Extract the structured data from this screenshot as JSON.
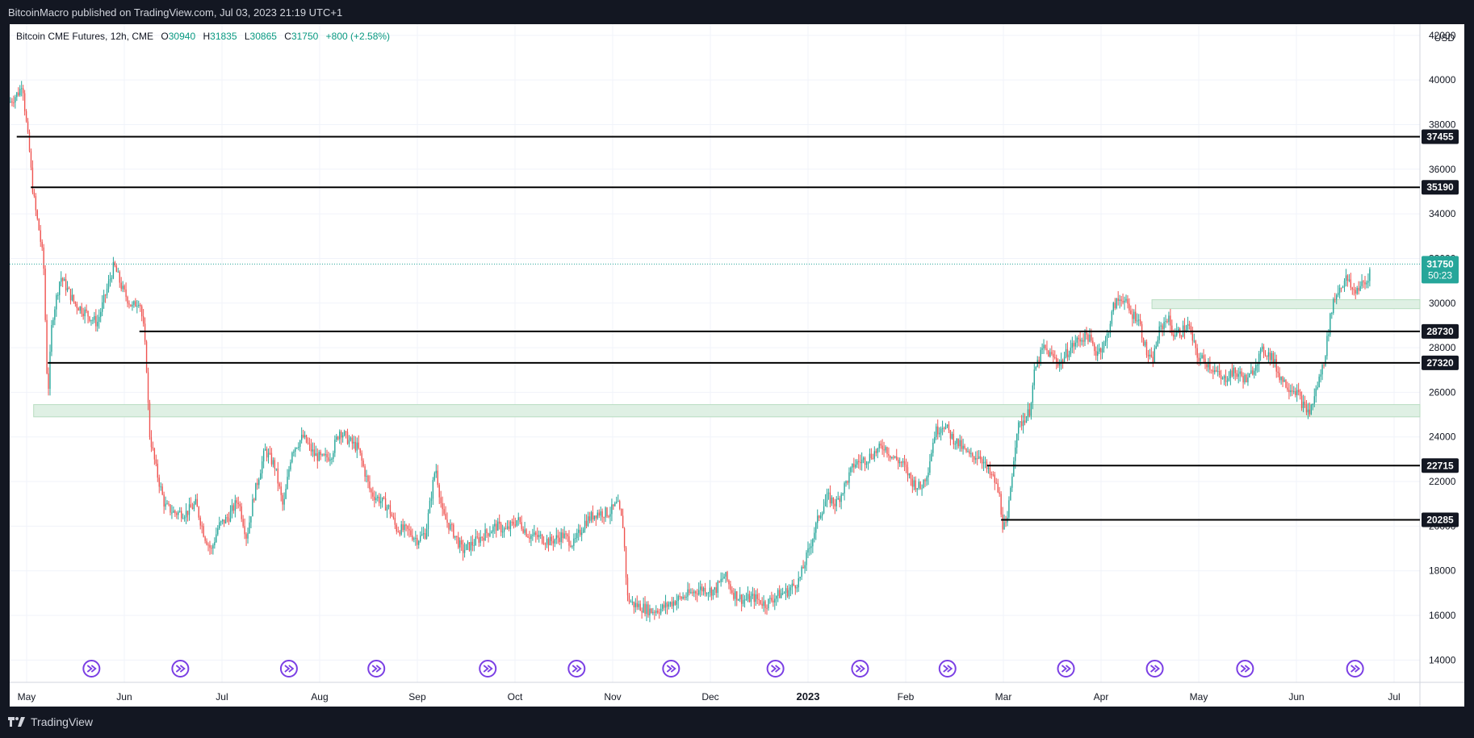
{
  "header": {
    "published_text": "BitcoinMacro published on TradingView.com, Jul 03, 2023 21:19 UTC+1"
  },
  "legend": {
    "symbol": "Bitcoin CME Futures, 12h, CME",
    "open_label": "O",
    "open": "30940",
    "high_label": "H",
    "high": "31835",
    "low_label": "L",
    "low": "30865",
    "close_label": "C",
    "close": "31750",
    "change": "+800 (+2.58%)"
  },
  "currency": "USD",
  "footer": {
    "brand": "TradingView"
  },
  "colors": {
    "up": "#26a69a",
    "down": "#ef5350",
    "level_line": "#000000",
    "zone_fill": "#dff0e4",
    "price_tag": "#26a69a",
    "event_icon": "#7b3fe4"
  },
  "chart_data": {
    "type": "candlestick",
    "title": "Bitcoin CME Futures, 12h, CME",
    "ylim": [
      13000,
      42500
    ],
    "y_ticks": [
      14000,
      16000,
      18000,
      20000,
      22000,
      24000,
      26000,
      28000,
      30000,
      32000,
      34000,
      36000,
      38000,
      40000,
      42000
    ],
    "x_ticks": [
      "May",
      "Jun",
      "Jul",
      "Aug",
      "Sep",
      "Oct",
      "Nov",
      "Dec",
      "2023",
      "Feb",
      "Mar",
      "Apr",
      "May",
      "Jun",
      "Jul"
    ],
    "last_price": "31750",
    "countdown": "50:23",
    "levels": [
      {
        "value": 37455,
        "label": "37455",
        "from": 0.005
      },
      {
        "value": 35190,
        "label": "35190",
        "from": 0.015
      },
      {
        "value": 28730,
        "label": "28730",
        "from": 0.092
      },
      {
        "value": 27320,
        "label": "27320",
        "from": 0.027
      },
      {
        "value": 22715,
        "label": "22715",
        "from": 0.693
      },
      {
        "value": 20285,
        "label": "20285",
        "from": 0.703
      }
    ],
    "zones": [
      {
        "low": 24900,
        "high": 25450,
        "from": 0.017,
        "to": 1.0
      },
      {
        "low": 29750,
        "high": 30150,
        "from": 0.81,
        "to": 1.0
      }
    ],
    "path": [
      [
        0.0,
        39000
      ],
      [
        0.007,
        39500
      ],
      [
        0.009,
        40000
      ],
      [
        0.011,
        38500
      ],
      [
        0.014,
        36800
      ],
      [
        0.016,
        35300
      ],
      [
        0.018,
        34300
      ],
      [
        0.021,
        33200
      ],
      [
        0.024,
        31800
      ],
      [
        0.027,
        25700
      ],
      [
        0.03,
        29200
      ],
      [
        0.036,
        31200
      ],
      [
        0.046,
        30000
      ],
      [
        0.055,
        29500
      ],
      [
        0.062,
        29100
      ],
      [
        0.068,
        30400
      ],
      [
        0.074,
        31700
      ],
      [
        0.08,
        30600
      ],
      [
        0.087,
        29800
      ],
      [
        0.092,
        30200
      ],
      [
        0.095,
        28800
      ],
      [
        0.097,
        27200
      ],
      [
        0.099,
        24200
      ],
      [
        0.104,
        22500
      ],
      [
        0.11,
        20900
      ],
      [
        0.117,
        20600
      ],
      [
        0.125,
        20600
      ],
      [
        0.132,
        21000
      ],
      [
        0.138,
        19600
      ],
      [
        0.143,
        18900
      ],
      [
        0.148,
        20000
      ],
      [
        0.155,
        20400
      ],
      [
        0.162,
        21200
      ],
      [
        0.168,
        19500
      ],
      [
        0.173,
        21300
      ],
      [
        0.181,
        23400
      ],
      [
        0.188,
        22700
      ],
      [
        0.194,
        20800
      ],
      [
        0.2,
        23400
      ],
      [
        0.208,
        24000
      ],
      [
        0.216,
        23200
      ],
      [
        0.222,
        23000
      ],
      [
        0.228,
        23200
      ],
      [
        0.234,
        24300
      ],
      [
        0.241,
        23800
      ],
      [
        0.247,
        23500
      ],
      [
        0.251,
        22600
      ],
      [
        0.256,
        21500
      ],
      [
        0.262,
        21200
      ],
      [
        0.269,
        20800
      ],
      [
        0.274,
        19900
      ],
      [
        0.282,
        19800
      ],
      [
        0.289,
        19400
      ],
      [
        0.295,
        19700
      ],
      [
        0.302,
        22700
      ],
      [
        0.307,
        20500
      ],
      [
        0.314,
        19800
      ],
      [
        0.321,
        18900
      ],
      [
        0.328,
        19200
      ],
      [
        0.336,
        19600
      ],
      [
        0.345,
        20000
      ],
      [
        0.352,
        19800
      ],
      [
        0.36,
        20300
      ],
      [
        0.368,
        19600
      ],
      [
        0.376,
        19500
      ],
      [
        0.383,
        19300
      ],
      [
        0.392,
        19600
      ],
      [
        0.4,
        19200
      ],
      [
        0.408,
        20200
      ],
      [
        0.416,
        20600
      ],
      [
        0.425,
        20600
      ],
      [
        0.431,
        21000
      ],
      [
        0.435,
        20000
      ],
      [
        0.438,
        16800
      ],
      [
        0.442,
        16500
      ],
      [
        0.447,
        16400
      ],
      [
        0.455,
        16200
      ],
      [
        0.462,
        16300
      ],
      [
        0.47,
        16600
      ],
      [
        0.48,
        16900
      ],
      [
        0.49,
        17200
      ],
      [
        0.5,
        17100
      ],
      [
        0.507,
        17800
      ],
      [
        0.513,
        17000
      ],
      [
        0.52,
        16700
      ],
      [
        0.528,
        16800
      ],
      [
        0.536,
        16500
      ],
      [
        0.544,
        16900
      ],
      [
        0.552,
        17100
      ],
      [
        0.56,
        17600
      ],
      [
        0.567,
        19000
      ],
      [
        0.574,
        20500
      ],
      [
        0.58,
        21300
      ],
      [
        0.586,
        21000
      ],
      [
        0.592,
        21800
      ],
      [
        0.599,
        22800
      ],
      [
        0.607,
        23000
      ],
      [
        0.613,
        23300
      ],
      [
        0.62,
        23600
      ],
      [
        0.626,
        23100
      ],
      [
        0.633,
        22800
      ],
      [
        0.64,
        22000
      ],
      [
        0.646,
        21700
      ],
      [
        0.651,
        22500
      ],
      [
        0.656,
        24200
      ],
      [
        0.662,
        24600
      ],
      [
        0.668,
        24000
      ],
      [
        0.674,
        23600
      ],
      [
        0.681,
        23100
      ],
      [
        0.688,
        23200
      ],
      [
        0.694,
        22400
      ],
      [
        0.698,
        22100
      ],
      [
        0.702,
        21300
      ],
      [
        0.704,
        20100
      ],
      [
        0.707,
        19900
      ],
      [
        0.71,
        21900
      ],
      [
        0.714,
        24300
      ],
      [
        0.719,
        24800
      ],
      [
        0.723,
        25100
      ],
      [
        0.727,
        27000
      ],
      [
        0.733,
        28000
      ],
      [
        0.739,
        27600
      ],
      [
        0.745,
        27300
      ],
      [
        0.751,
        27900
      ],
      [
        0.757,
        28300
      ],
      [
        0.764,
        28600
      ],
      [
        0.77,
        27800
      ],
      [
        0.777,
        28200
      ],
      [
        0.783,
        29900
      ],
      [
        0.789,
        30300
      ],
      [
        0.795,
        29500
      ],
      [
        0.8,
        29400
      ],
      [
        0.806,
        27800
      ],
      [
        0.81,
        27300
      ],
      [
        0.815,
        28700
      ],
      [
        0.821,
        29400
      ],
      [
        0.825,
        28600
      ],
      [
        0.83,
        28700
      ],
      [
        0.836,
        29000
      ],
      [
        0.842,
        27600
      ],
      [
        0.848,
        27400
      ],
      [
        0.854,
        27000
      ],
      [
        0.86,
        26500
      ],
      [
        0.866,
        26900
      ],
      [
        0.872,
        26800
      ],
      [
        0.878,
        26500
      ],
      [
        0.884,
        27400
      ],
      [
        0.889,
        27900
      ],
      [
        0.895,
        27600
      ],
      [
        0.9,
        26800
      ],
      [
        0.906,
        26300
      ],
      [
        0.912,
        26100
      ],
      [
        0.918,
        25300
      ],
      [
        0.922,
        25100
      ],
      [
        0.926,
        26000
      ],
      [
        0.932,
        27400
      ],
      [
        0.938,
        30000
      ],
      [
        0.943,
        30700
      ],
      [
        0.948,
        31100
      ],
      [
        0.953,
        30500
      ],
      [
        0.958,
        30800
      ],
      [
        0.963,
        30900
      ],
      [
        0.965,
        31750
      ]
    ],
    "event_icon": "fast-forward-circle-icon",
    "event_marks": [
      0.058,
      0.121,
      0.198,
      0.26,
      0.339,
      0.402,
      0.469,
      0.543,
      0.603,
      0.665,
      0.749,
      0.812,
      0.876,
      0.954
    ]
  }
}
